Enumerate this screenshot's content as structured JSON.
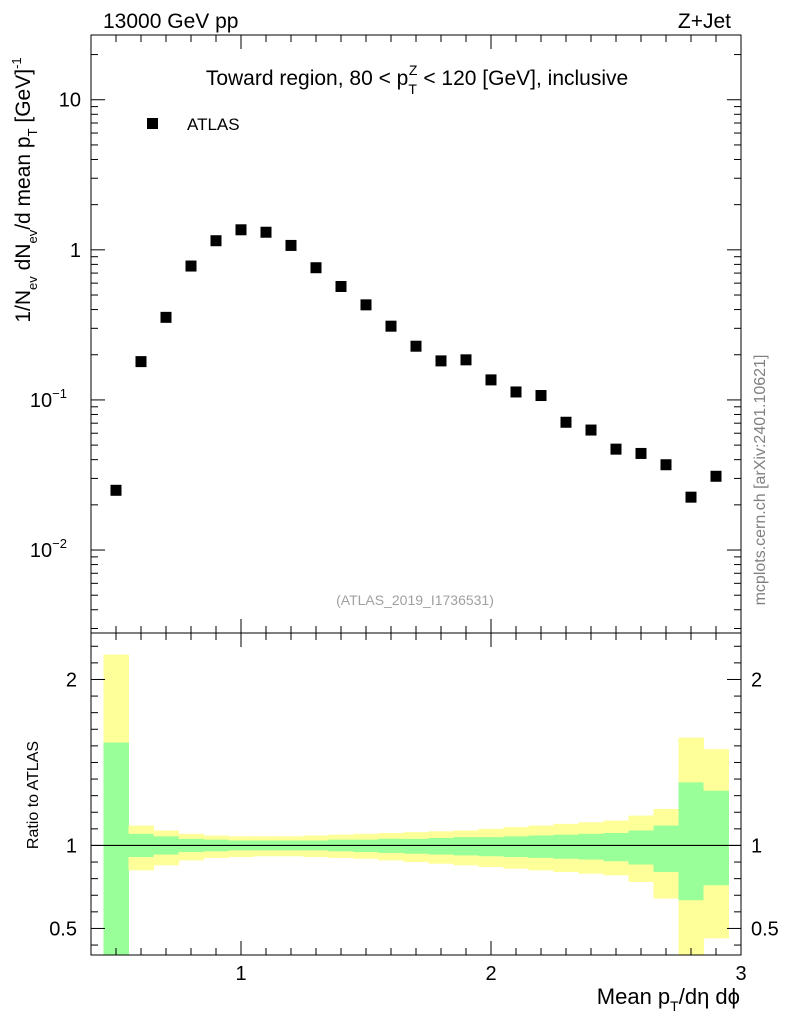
{
  "header": {
    "left": "13000 GeV pp",
    "right": "Z+Jet"
  },
  "side_label": "mcplots.cern.ch [arXiv:2401.10621]",
  "colors": {
    "band_outer": "#ffff99",
    "band_inner": "#99ff99",
    "marker": "#000000"
  },
  "chart_data": [
    {
      "type": "scatter",
      "title_parts": {
        "pre": "Toward region, 80 < p",
        "sub": "T",
        "sup": "Z",
        "post": " < 120 [GeV], inclusive"
      },
      "legend": "ATLAS",
      "analysis_tag": "(ATLAS_2019_I1736531)",
      "ylabel_parts": {
        "a": "1/N",
        "a_sub": "ev",
        "b": " dN",
        "b_sub": "ev",
        "c": "/d mean p",
        "c_sub": "T",
        "d": " [GeV]",
        "d_sup": "-1"
      },
      "yscale": "log",
      "ylim": [
        0.0028,
        27
      ],
      "xlim": [
        0.4,
        3.0
      ],
      "y_ticks": [
        {
          "value": 10,
          "base": "10",
          "exp": ""
        },
        {
          "value": 1,
          "base": "1",
          "exp": ""
        },
        {
          "value": 0.1,
          "base": "10",
          "exp": "−1"
        },
        {
          "value": 0.01,
          "base": "10",
          "exp": "−2"
        }
      ],
      "x": [
        0.5,
        0.6,
        0.7,
        0.8,
        0.9,
        1.0,
        1.1,
        1.2,
        1.3,
        1.4,
        1.5,
        1.6,
        1.7,
        1.8,
        1.9,
        2.0,
        2.1,
        2.2,
        2.3,
        2.4,
        2.5,
        2.6,
        2.7,
        2.8,
        2.9
      ],
      "y": [
        0.025,
        0.18,
        0.355,
        0.78,
        1.15,
        1.36,
        1.31,
        1.07,
        0.76,
        0.57,
        0.43,
        0.31,
        0.228,
        0.182,
        0.185,
        0.136,
        0.113,
        0.107,
        0.071,
        0.063,
        0.047,
        0.044,
        0.037,
        0.0225,
        0.031
      ]
    },
    {
      "type": "area",
      "ylabel": "Ratio to ATLAS",
      "xlabel_parts": {
        "a": "Mean p",
        "a_sub": "T",
        "b": "/dη dϕ"
      },
      "ylim": [
        0.34,
        2.28
      ],
      "xlim": [
        0.4,
        3.0
      ],
      "x_ticks": [
        "1",
        "2",
        "3"
      ],
      "x_tick_values": [
        1,
        2,
        3
      ],
      "y_ticks": [
        "0.5",
        "1",
        "2"
      ],
      "y_tick_values": [
        0.5,
        1,
        2
      ],
      "bin_edges": [
        0.45,
        0.55,
        0.65,
        0.75,
        0.85,
        0.95,
        1.05,
        1.15,
        1.25,
        1.35,
        1.45,
        1.55,
        1.65,
        1.75,
        1.85,
        1.95,
        2.05,
        2.15,
        2.25,
        2.35,
        2.45,
        2.55,
        2.65,
        2.75,
        2.85,
        2.95
      ],
      "band_outer_up": [
        2.15,
        1.12,
        1.09,
        1.07,
        1.06,
        1.055,
        1.055,
        1.055,
        1.06,
        1.065,
        1.07,
        1.075,
        1.08,
        1.085,
        1.09,
        1.1,
        1.11,
        1.12,
        1.13,
        1.14,
        1.15,
        1.18,
        1.22,
        1.65,
        1.58
      ],
      "band_outer_down": [
        0.34,
        0.85,
        0.88,
        0.91,
        0.925,
        0.93,
        0.935,
        0.935,
        0.93,
        0.925,
        0.92,
        0.91,
        0.9,
        0.89,
        0.88,
        0.87,
        0.86,
        0.85,
        0.84,
        0.83,
        0.82,
        0.78,
        0.68,
        0.34,
        0.44
      ],
      "band_inner_up": [
        1.62,
        1.07,
        1.055,
        1.04,
        1.035,
        1.03,
        1.03,
        1.03,
        1.03,
        1.035,
        1.035,
        1.04,
        1.04,
        1.045,
        1.05,
        1.05,
        1.055,
        1.06,
        1.065,
        1.07,
        1.075,
        1.09,
        1.12,
        1.38,
        1.33
      ],
      "band_inner_down": [
        0.34,
        0.93,
        0.945,
        0.96,
        0.965,
        0.97,
        0.97,
        0.97,
        0.97,
        0.965,
        0.96,
        0.955,
        0.95,
        0.945,
        0.94,
        0.935,
        0.93,
        0.925,
        0.92,
        0.915,
        0.905,
        0.885,
        0.84,
        0.67,
        0.76
      ],
      "reference_line": 1
    }
  ]
}
